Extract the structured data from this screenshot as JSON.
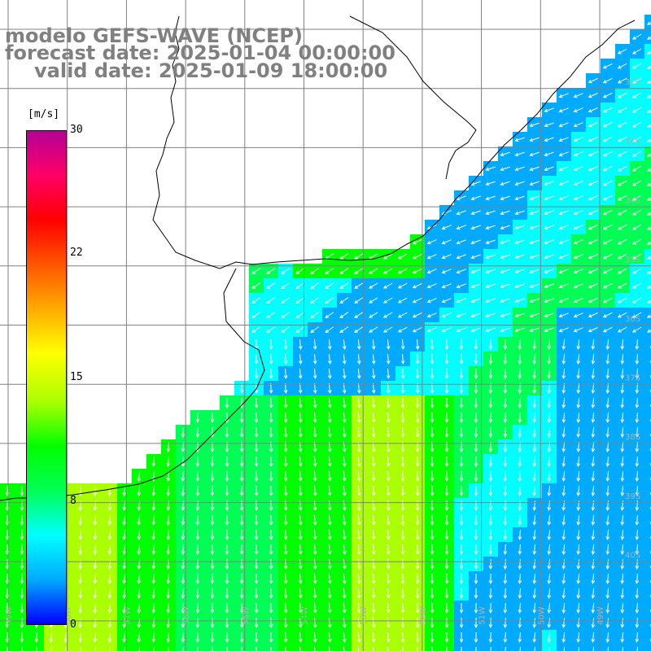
{
  "title": {
    "model": "modelo GEFS-WAVE (NCEP)",
    "forecast": "forecast date: 2025-01-04 00:00:00",
    "valid": "valid date: 2025-01-09 18:00:00"
  },
  "colorbar": {
    "unit": "[m/s]",
    "ticks": [
      "30",
      "22",
      "15",
      "8",
      "0"
    ],
    "tick_values": [
      30,
      22,
      15,
      8,
      0
    ],
    "colors": [
      "#0000ff",
      "#00aaff",
      "#00ffff",
      "#00ff55",
      "#00ff00",
      "#aaff00",
      "#ffff00",
      "#ffaa00",
      "#ff5500",
      "#ff0000",
      "#ff0066",
      "#b40096"
    ]
  },
  "map": {
    "lat_labels": [
      "32S",
      "33S",
      "34S",
      "35S",
      "36S",
      "37S",
      "38S",
      "39S",
      "40S"
    ],
    "lon_labels": [
      "59W",
      "58W",
      "57W",
      "56W",
      "55W",
      "54W",
      "53W",
      "52W",
      "51W",
      "50W",
      "49W"
    ],
    "colors": {
      "land": "#ffffff",
      "grid": "#808080",
      "coast": "#000000",
      "arrow": "#ffffff",
      "title": "#808080"
    },
    "arrow_direction": "predominantly southward (onshore/alongshore)"
  }
}
